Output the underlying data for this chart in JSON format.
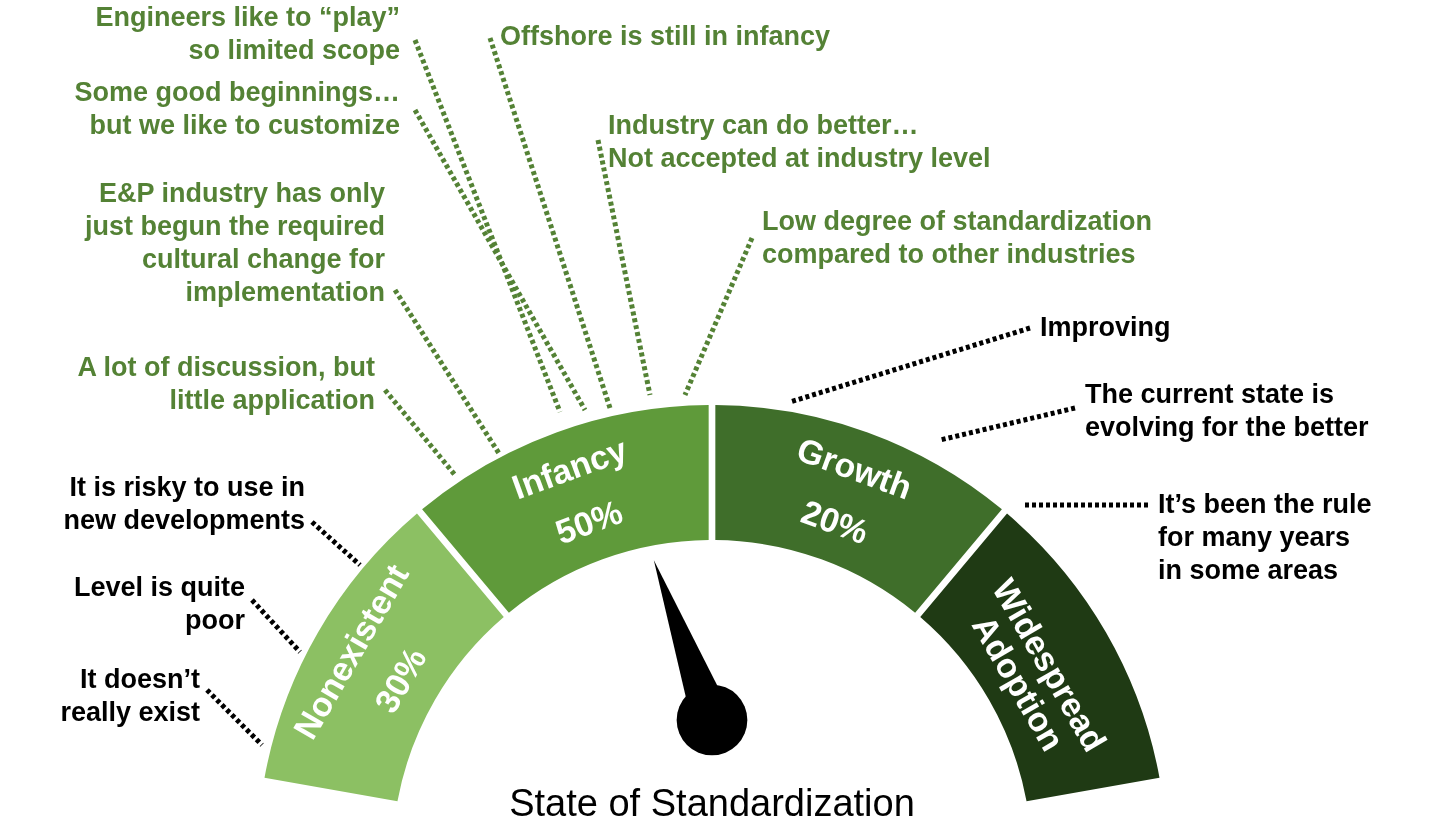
{
  "chart_data": {
    "type": "other",
    "title": "State of Standardization",
    "categories": [
      "Nonexistent",
      "Infancy",
      "Growth",
      "Widespread Adoption"
    ],
    "values": [
      30,
      50,
      20,
      null
    ],
    "value_labels": [
      "30%",
      "50%",
      "20%",
      null
    ],
    "colors": [
      "#8cc063",
      "#5f9a3a",
      "#3f6e2a",
      "#1f3a14"
    ],
    "annotations": [
      "Engineers like to “play”\nso limited scope",
      "Offshore is still in infancy",
      "Some good beginnings…\nbut we like to customize",
      "Industry can do better…\nNot accepted at industry level",
      "Low degree of standardization\ncompared to other industries",
      "E&P industry has only\njust begun the required\ncultural change for\nimplementation",
      "A lot of discussion, but\nlittle application",
      "It is risky to use in\nnew developments",
      "Level is quite\npoor",
      "It doesn’t\nreally exist",
      "Improving",
      "The current state is\nevolving for the better",
      "It’s been the rule\nfor many years\nin some areas"
    ]
  }
}
